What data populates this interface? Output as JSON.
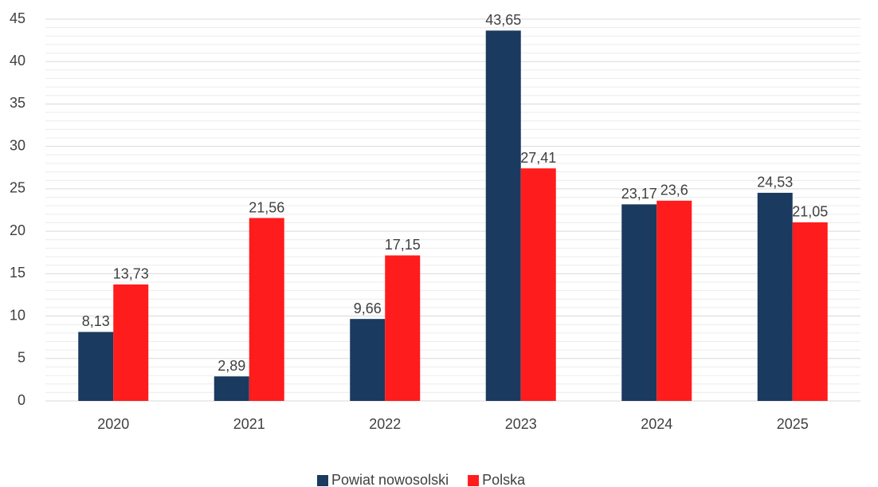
{
  "chart_data": {
    "type": "bar",
    "categories": [
      "2020",
      "2021",
      "2022",
      "2023",
      "2024",
      "2025"
    ],
    "series": [
      {
        "name": "Powiat nowosolski",
        "color": "#1a3a5f",
        "values": [
          8.13,
          2.89,
          9.66,
          43.65,
          23.17,
          24.53
        ],
        "value_labels": [
          "8,13",
          "2,89",
          "9,66",
          "43,65",
          "23,17",
          "24,53"
        ]
      },
      {
        "name": "Polska",
        "color": "#ff1c1c",
        "values": [
          13.73,
          21.56,
          17.15,
          27.41,
          23.6,
          21.05
        ],
        "value_labels": [
          "13,73",
          "21,56",
          "17,15",
          "27,41",
          "23,6",
          "21,05"
        ]
      }
    ],
    "ylim": [
      0,
      45
    ],
    "yticks": [
      0,
      5,
      10,
      15,
      20,
      25,
      30,
      35,
      40,
      45
    ],
    "grid": true,
    "minor_grid": true,
    "legend": "bottom"
  }
}
